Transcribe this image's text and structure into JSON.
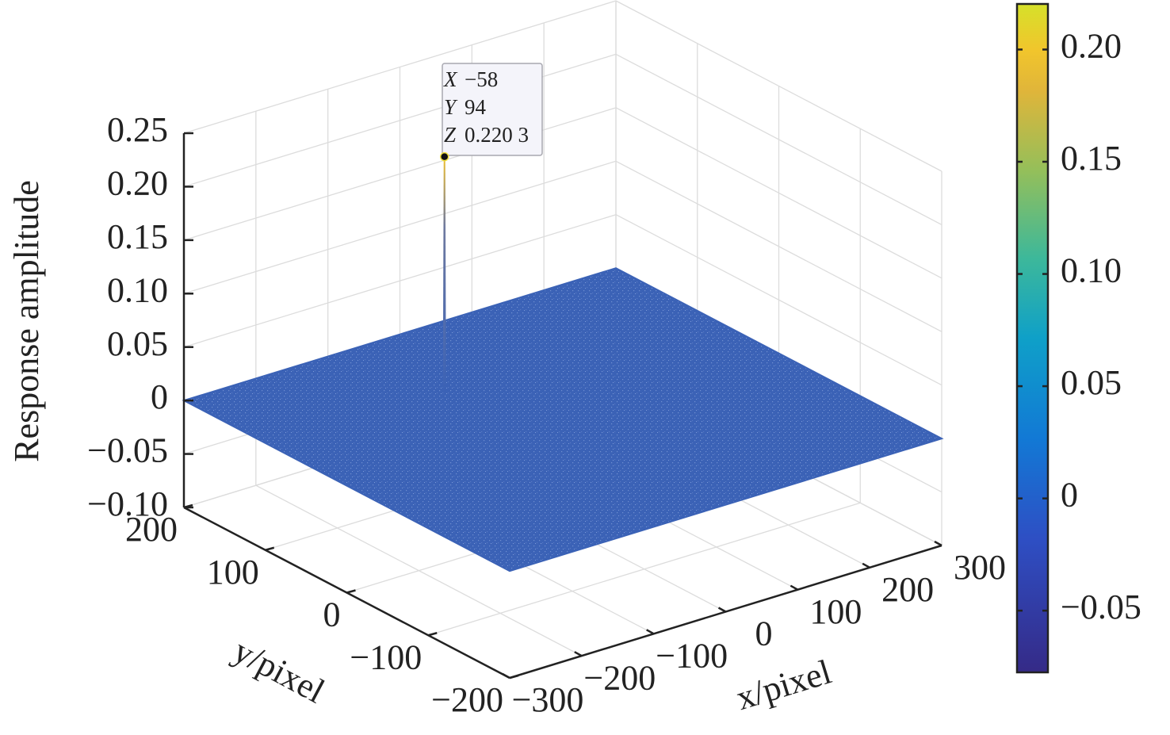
{
  "chart_data": {
    "type": "surface3d",
    "zlabel": "Response amplitude",
    "xlabel": "x/pixel",
    "ylabel": "y/pixel",
    "xlim": [
      -300,
      300
    ],
    "xticks": [
      {
        "value": -300,
        "label": "−300"
      },
      {
        "value": -200,
        "label": "−200"
      },
      {
        "value": -100,
        "label": "−100"
      },
      0,
      100,
      200,
      300
    ],
    "ylim": [
      -200,
      200
    ],
    "yticks": [
      {
        "value": -200,
        "label": "−200"
      },
      {
        "value": -100,
        "label": "−100"
      },
      0,
      100,
      200
    ],
    "zlim": [
      -0.1,
      0.25
    ],
    "zticks": [
      {
        "value": -0.1,
        "label": "−0.10"
      },
      {
        "value": -0.05,
        "label": "−0.05"
      },
      0,
      0.05,
      {
        "value": 0.1,
        "label": "0.10"
      },
      0.15,
      {
        "value": 0.2,
        "label": "0.20"
      },
      0.25
    ],
    "grid": true,
    "color": "#3b62b6",
    "base_z": 0,
    "peak": {
      "x": -58,
      "y": 94,
      "z": 0.2203
    },
    "datatip": {
      "x_name": "X",
      "y_name": "Y",
      "z_name": "Z",
      "x_label": "−58",
      "y_label": "94",
      "z_label": "0.220 3"
    },
    "colormap": "parula",
    "colorbar": {
      "lim": [
        -0.0775,
        0.2203
      ],
      "ticks": [
        {
          "value": -0.05,
          "label": "−0.05"
        },
        0,
        0.05,
        {
          "value": 0.1,
          "label": "0.10"
        },
        0.15,
        {
          "value": 0.2,
          "label": "0.20"
        }
      ]
    }
  }
}
